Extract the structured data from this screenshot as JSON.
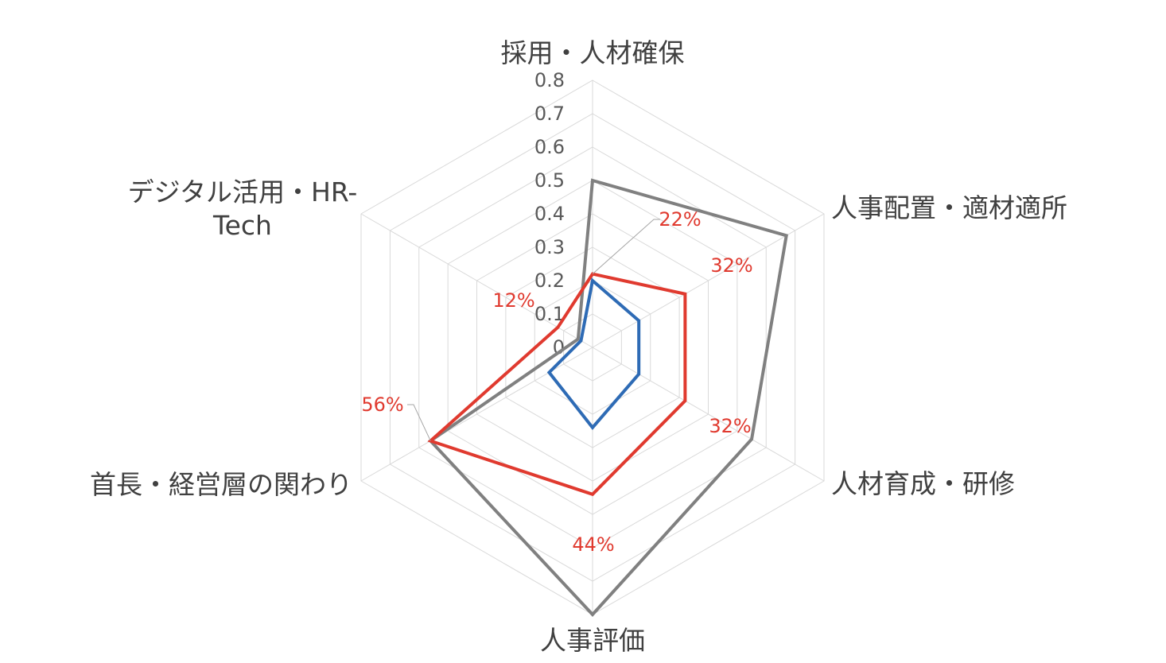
{
  "chart_data": {
    "type": "radar",
    "categories": [
      "採用・人材確保",
      "人事配置・適材適所",
      "人材育成・研修",
      "人事評価",
      "首長・経営層の関わり",
      "デジタル活用・HR-Tech"
    ],
    "category_label_lines": [
      [
        "採用・人材確保"
      ],
      [
        "人事配置・適材適所"
      ],
      [
        "人材育成・研修"
      ],
      [
        "人事評価"
      ],
      [
        "首長・経営層の関わり"
      ],
      [
        "デジタル活用・HR-",
        "Tech"
      ]
    ],
    "rlim": [
      0,
      0.8
    ],
    "ticks": [
      "0",
      "0.1",
      "0.2",
      "0.3",
      "0.4",
      "0.5",
      "0.6",
      "0.7",
      "0.8"
    ],
    "tick_values": [
      0,
      0.1,
      0.2,
      0.3,
      0.4,
      0.5,
      0.6,
      0.7,
      0.8
    ],
    "grid": true,
    "series": [
      {
        "color": "#808080",
        "values": [
          0.5,
          0.67,
          0.55,
          0.8,
          0.56,
          0.05
        ]
      },
      {
        "color": "#e03a2f",
        "values": [
          0.22,
          0.32,
          0.32,
          0.44,
          0.56,
          0.12
        ],
        "data_labels": [
          "22%",
          "32%",
          "32%",
          "44%",
          "56%",
          "12%"
        ]
      },
      {
        "color": "#2e6bb5",
        "values": [
          0.2,
          0.16,
          0.16,
          0.24,
          0.15,
          0.04
        ]
      }
    ]
  }
}
